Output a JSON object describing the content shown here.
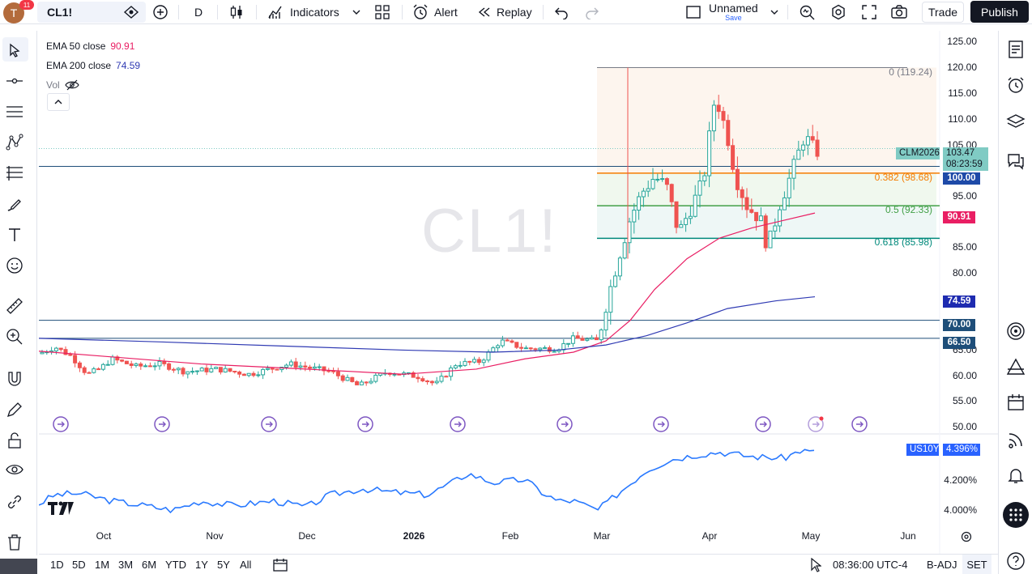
{
  "topbar": {
    "avatar_letter": "T",
    "notification_count": "11",
    "symbol": "CL1!",
    "interval": "D",
    "indicators_label": "Indicators",
    "alert_label": "Alert",
    "replay_label": "Replay",
    "layout_name": "Unnamed",
    "layout_save": "Save",
    "trade_label": "Trade",
    "publish_label": "Publish"
  },
  "legend": {
    "ema50_label": "EMA 50 close",
    "ema50_value": "90.91",
    "ema200_label": "EMA 200 close",
    "ema200_value": "74.59",
    "vol_label": "Vol"
  },
  "watermark": "CL1!",
  "fib": {
    "level_0": "0 (119.24)",
    "level_0382": "0.382 (98.68)",
    "level_05": "0.5 (92.33)",
    "level_0618": "0.618 (85.98)"
  },
  "price_axis": {
    "ticks": [
      "125.00",
      "120.00",
      "115.00",
      "110.00",
      "105.00",
      "95.00",
      "85.00",
      "80.00",
      "65.00",
      "60.00",
      "55.00",
      "50.00"
    ],
    "tag_symbol": "CLM2026",
    "tag_last": "103.47",
    "tag_countdown": "08:23:59",
    "tag_100": "100.00",
    "tag_ema50": "90.91",
    "tag_ema200": "74.59",
    "tag_70": "70.00",
    "tag_6650": "66.50"
  },
  "sub_pane": {
    "symbol": "US10Y",
    "value": "4.396%",
    "ticks": [
      "4.200%",
      "4.000%"
    ]
  },
  "time_axis": [
    "Oct",
    "Nov",
    "Dec",
    "2026",
    "Feb",
    "Mar",
    "Apr",
    "May",
    "Jun"
  ],
  "bottombar": {
    "ranges": [
      "1D",
      "5D",
      "1M",
      "3M",
      "6M",
      "YTD",
      "1Y",
      "5Y",
      "All"
    ],
    "clock": "08:36:00 UTC-4",
    "adj": "B-ADJ",
    "session": "SET"
  },
  "colors": {
    "up": "#26a69a",
    "down": "#ef5350",
    "ema50": "#e91e63",
    "ema200": "#2f3ab3",
    "us10y": "#2979ff",
    "fib_orange": "#f57c00",
    "fib_green": "#43a047",
    "hline": "#1e4e79"
  }
}
